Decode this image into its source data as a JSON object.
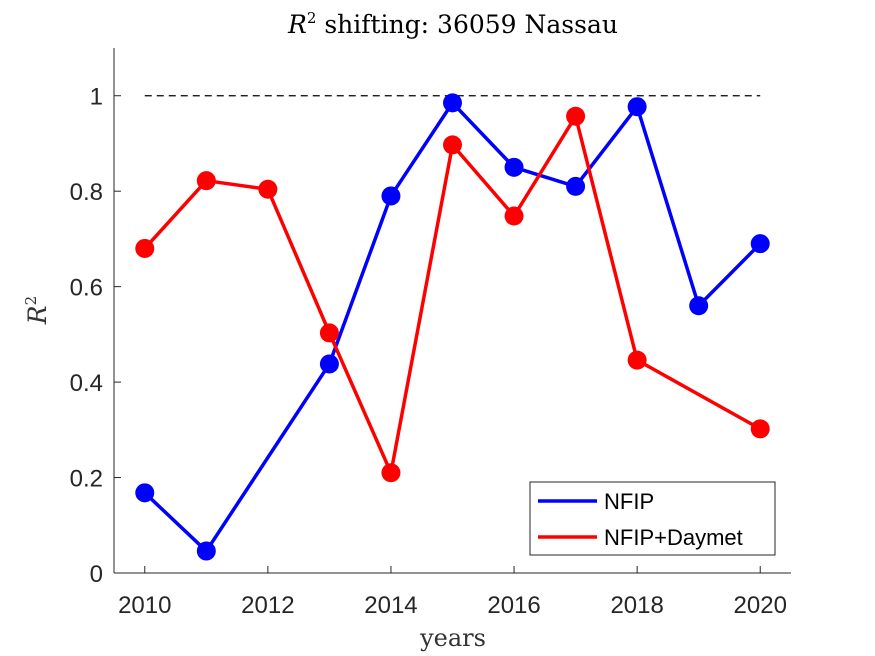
{
  "chart_data": {
    "type": "line",
    "title_prefix": "R",
    "title_sup": "2",
    "title_rest": " shifting: 36059 Nassau",
    "xlabel": "years",
    "ylabel_main": "R",
    "ylabel_sup": "2",
    "xlim": [
      2009.5,
      2020.5
    ],
    "ylim": [
      0,
      1.1
    ],
    "xticks": [
      2010,
      2012,
      2014,
      2016,
      2018,
      2020
    ],
    "xtick_labels": [
      "2010",
      "2012",
      "2014",
      "2016",
      "2018",
      "2020"
    ],
    "yticks": [
      0,
      0.2,
      0.4,
      0.6,
      0.8,
      1
    ],
    "ytick_labels": [
      "0",
      "0.2",
      "0.4",
      "0.6",
      "0.8",
      "1"
    ],
    "reference_line": {
      "y": 1,
      "x_range": [
        2010,
        2020
      ],
      "style": "dashed",
      "color": "#000000"
    },
    "legend_position": "bottom-right",
    "series": [
      {
        "name": "NFIP",
        "color": "#0000ff",
        "x": [
          2010,
          2011,
          2013,
          2014,
          2015,
          2016,
          2017,
          2018,
          2019,
          2020
        ],
        "values": [
          0.168,
          0.046,
          0.438,
          0.79,
          0.985,
          0.85,
          0.81,
          0.977,
          0.56,
          0.69
        ]
      },
      {
        "name": "NFIP+Daymet",
        "color": "#ff0000",
        "x": [
          2010,
          2011,
          2012,
          2013,
          2014,
          2015,
          2016,
          2017,
          2018,
          2020
        ],
        "values": [
          0.68,
          0.822,
          0.804,
          0.503,
          0.21,
          0.897,
          0.748,
          0.957,
          0.446,
          0.302
        ]
      }
    ]
  }
}
